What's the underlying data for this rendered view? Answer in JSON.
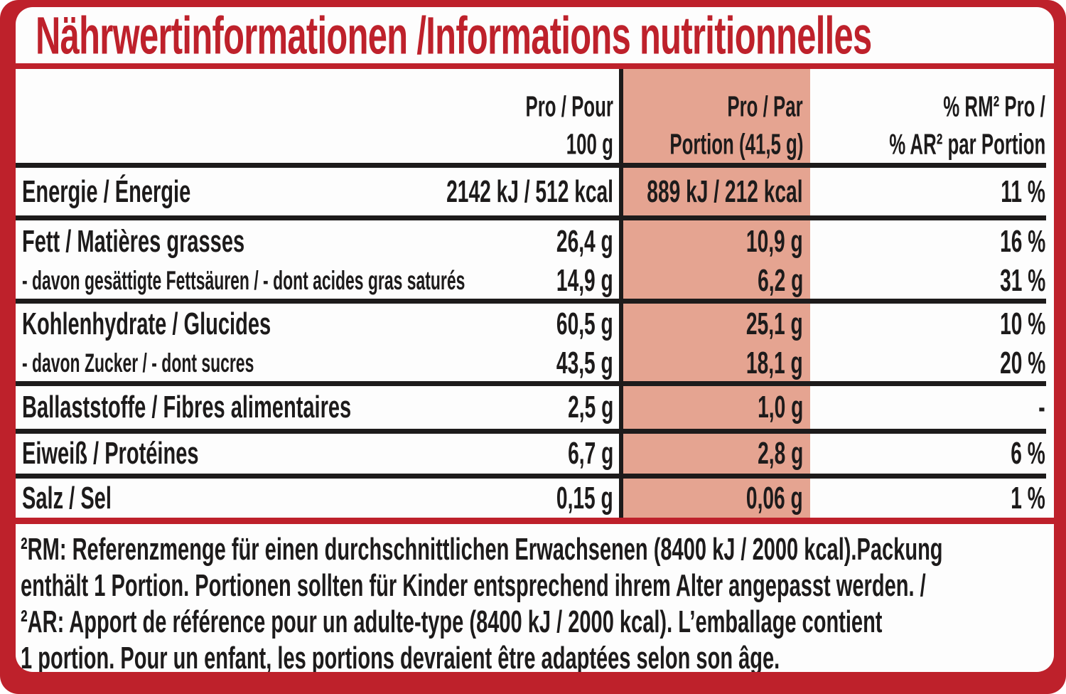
{
  "title": "Nährwertinformationen /Informations nutritionnelles",
  "colors": {
    "accent_red": "#BE212B",
    "portion_highlight_pink": "#E5A491",
    "text_black": "#1D1B1B"
  },
  "table": {
    "headers": {
      "per100": [
        "Pro / Pour",
        "100 g"
      ],
      "portion": [
        "Pro / Par",
        "Portion (41,5 g)"
      ],
      "rm": [
        "% RM² Pro /",
        "% AR² par Portion"
      ]
    },
    "groups": [
      {
        "rows": [
          {
            "id": "energie",
            "sub": false,
            "label": "Energie / Énergie",
            "per100": "2142 kJ / 512 kcal",
            "portion": "889 kJ / 212 kcal",
            "pct": "11 %"
          }
        ]
      },
      {
        "rows": [
          {
            "id": "fett",
            "sub": false,
            "label": "Fett / Matières grasses",
            "per100": "26,4 g",
            "portion": "10,9 g",
            "pct": "16 %"
          },
          {
            "id": "fett_sat",
            "sub": true,
            "label": "- davon gesättigte Fettsäuren / - dont acides gras saturés",
            "per100": "14,9 g",
            "portion": "6,2 g",
            "pct": "31 %"
          }
        ]
      },
      {
        "rows": [
          {
            "id": "carbs",
            "sub": false,
            "label": "Kohlenhydrate / Glucides",
            "per100": "60,5 g",
            "portion": "25,1 g",
            "pct": "10 %"
          },
          {
            "id": "sugars",
            "sub": true,
            "label": "- davon Zucker / - dont sucres",
            "per100": "43,5 g",
            "portion": "18,1 g",
            "pct": "20 %"
          }
        ]
      },
      {
        "rows": [
          {
            "id": "fibre",
            "sub": false,
            "label": "Ballaststoffe / Fibres alimentaires",
            "per100": "2,5 g",
            "portion": "1,0 g",
            "pct": "-"
          }
        ]
      },
      {
        "rows": [
          {
            "id": "protein",
            "sub": false,
            "label": "Eiweiß / Protéines",
            "per100": "6,7 g",
            "portion": "2,8 g",
            "pct": "6 %"
          }
        ]
      },
      {
        "rows": [
          {
            "id": "salt",
            "sub": false,
            "label": "Salz / Sel",
            "per100": "0,15 g",
            "portion": "0,06 g",
            "pct": "1 %"
          }
        ]
      }
    ]
  },
  "footnote": {
    "lines": [
      "²RM: Referenzmenge für einen durchschnittlichen Erwachsenen (8400 kJ / 2000 kcal).Packung",
      "enthält 1 Portion. Portionen sollten für Kinder entsprechend ihrem Alter angepasst werden. /",
      "²AR: Apport de référence pour un adulte-type (8400 kJ / 2000 kcal). L’emballage contient",
      "1 portion. Pour un enfant, les portions devraient être adaptées selon son âge."
    ]
  }
}
